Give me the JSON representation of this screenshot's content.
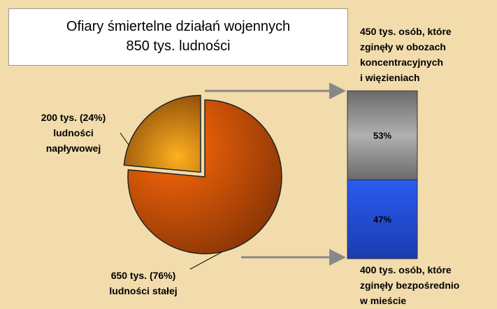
{
  "chart_data": [
    {
      "type": "pie",
      "title": "Ofiary śmiertelne działań wojennych",
      "subtitle": "850 tys. ludności",
      "categories": [
        "ludności\nnapływowej",
        "ludności stałej"
      ],
      "values": [
        200,
        650
      ],
      "value_labels": [
        "200 tys. (24%)",
        "650 tys. (76%)"
      ],
      "colors": [
        "#f29a1a",
        "#e0600c"
      ],
      "exploded": 0
    },
    {
      "type": "bar",
      "categories": [
        "450 tys. osób, które\nzginęły w obozach\nkoncentracyjnych\ni więzieniach",
        "400 tys. osób, które\nzginęły bezpośrednio\nw mieście"
      ],
      "values": [
        53,
        47
      ],
      "value_labels": [
        "53%",
        "47%"
      ],
      "colors": [
        "#8a8a8a",
        "#2452e6"
      ],
      "stacked": true
    }
  ]
}
